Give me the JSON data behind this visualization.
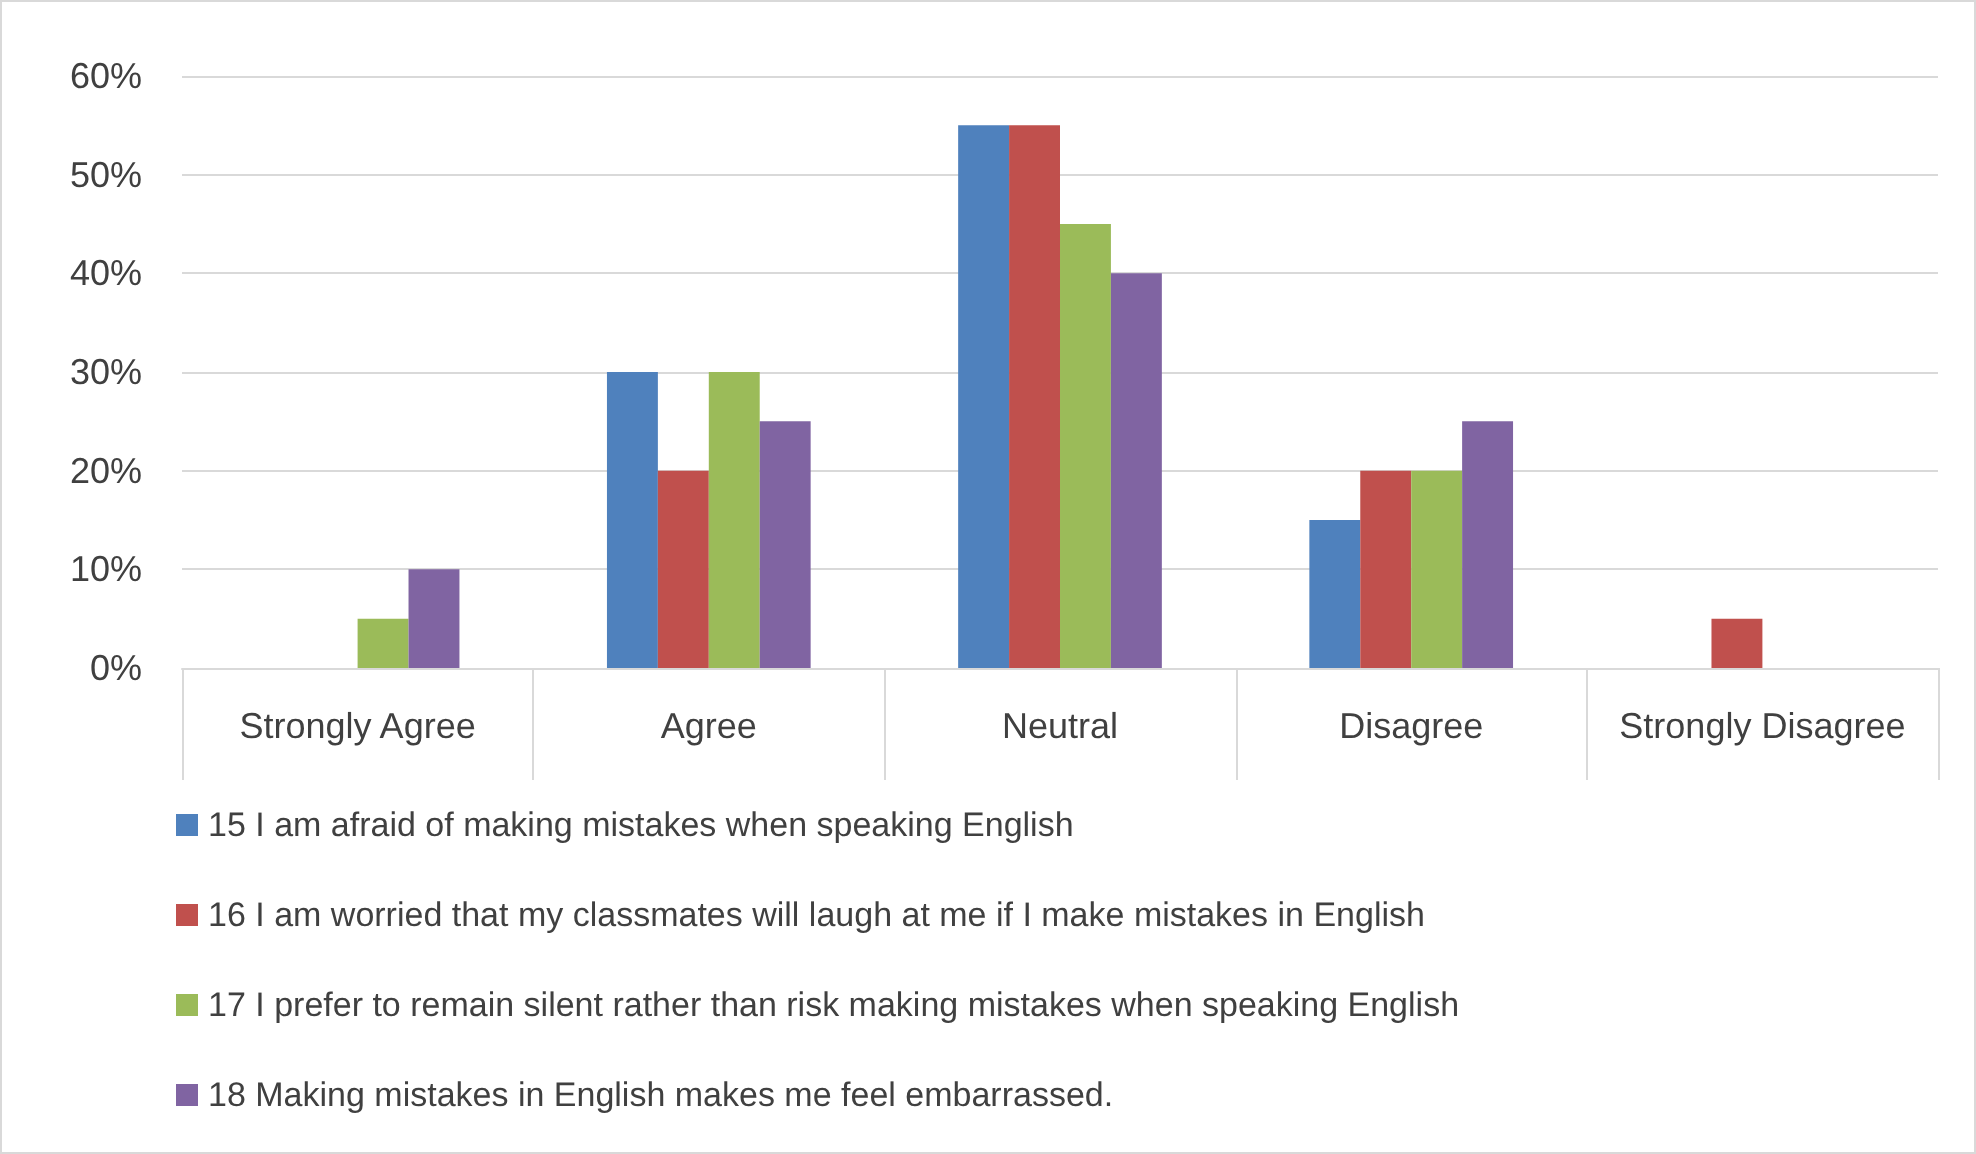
{
  "chart_data": {
    "type": "bar",
    "categories": [
      "Strongly Agree",
      "Agree",
      "Neutral",
      "Disagree",
      "Strongly Disagree"
    ],
    "series": [
      {
        "name": "15 I am afraid of making mistakes when speaking English",
        "color": "#4f81bd",
        "values": [
          0,
          30,
          55,
          15,
          0
        ]
      },
      {
        "name": "16 I am worried that my classmates will laugh at me if I make mistakes in English",
        "color": "#c0504d",
        "values": [
          0,
          20,
          55,
          20,
          5
        ]
      },
      {
        "name": "17 I prefer to remain silent rather than risk making mistakes when speaking English",
        "color": "#9bbb59",
        "values": [
          5,
          30,
          45,
          20,
          0
        ]
      },
      {
        "name": "18 Making mistakes in English makes me feel embarrassed.",
        "color": "#8064a2",
        "values": [
          10,
          25,
          40,
          25,
          0
        ]
      }
    ],
    "ylim": [
      0,
      60
    ],
    "yticks": [
      {
        "value": 0,
        "label": "0%"
      },
      {
        "value": 10,
        "label": "10%"
      },
      {
        "value": 20,
        "label": "20%"
      },
      {
        "value": 30,
        "label": "30%"
      },
      {
        "value": 40,
        "label": "40%"
      },
      {
        "value": 50,
        "label": "50%"
      },
      {
        "value": 60,
        "label": "60%"
      }
    ],
    "grid": "y",
    "legend": "bottom"
  }
}
